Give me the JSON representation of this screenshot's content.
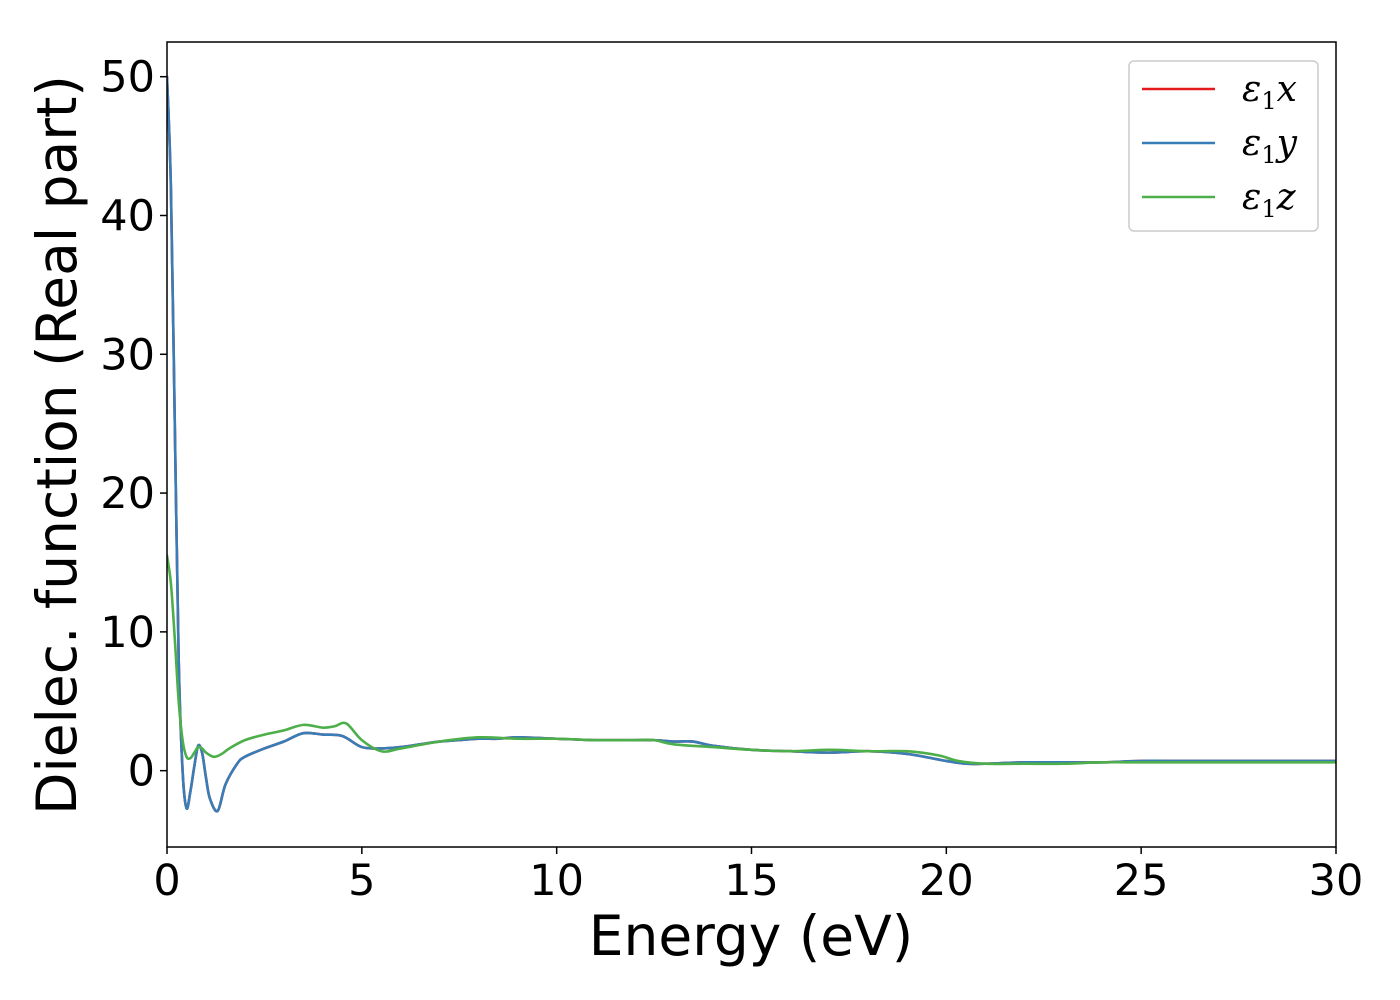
{
  "chart_data": {
    "type": "line",
    "title": "",
    "xlabel": "Energy (eV)",
    "ylabel": "Dielec. function (Real part)",
    "xlim": [
      0,
      30
    ],
    "ylim": [
      -5.5,
      52.5
    ],
    "xticks": [
      0,
      5,
      10,
      15,
      20,
      25,
      30
    ],
    "yticks": [
      0,
      10,
      20,
      30,
      40,
      50
    ],
    "grid": false,
    "legend_position": "top-right",
    "series": [
      {
        "name": "ε1x",
        "legend_main": "ε",
        "legend_sub": "1",
        "legend_axis": "x",
        "color": "#e41a1c",
        "x": [
          0,
          0.1,
          0.2,
          0.3,
          0.4,
          0.5,
          0.6,
          0.7,
          0.8,
          0.9,
          1.0,
          1.1,
          1.3,
          1.5,
          1.8,
          2.0,
          2.5,
          3.0,
          3.5,
          4.0,
          4.5,
          5.0,
          5.5,
          6.0,
          6.5,
          7.0,
          7.5,
          8.0,
          8.5,
          9.0,
          10.0,
          11.0,
          12.0,
          12.5,
          13.0,
          13.5,
          14.0,
          15.0,
          16.0,
          17.0,
          18.0,
          19.0,
          20.0,
          20.5,
          21.0,
          22.0,
          23.0,
          24.0,
          25.0,
          26.0,
          27.0,
          28.0,
          29.0,
          30.0
        ],
        "y": [
          50,
          42,
          25,
          8,
          0,
          -2.7,
          -1.5,
          0.3,
          1.8,
          1.3,
          -0.5,
          -2.0,
          -2.9,
          -1.0,
          0.5,
          1.0,
          1.6,
          2.1,
          2.7,
          2.6,
          2.5,
          1.7,
          1.6,
          1.7,
          1.9,
          2.1,
          2.2,
          2.3,
          2.3,
          2.4,
          2.3,
          2.2,
          2.2,
          2.2,
          2.1,
          2.1,
          1.8,
          1.5,
          1.4,
          1.3,
          1.4,
          1.2,
          0.7,
          0.5,
          0.5,
          0.6,
          0.6,
          0.6,
          0.7,
          0.7,
          0.7,
          0.7,
          0.7,
          0.7
        ]
      },
      {
        "name": "ε1y",
        "legend_main": "ε",
        "legend_sub": "1",
        "legend_axis": "y",
        "color": "#377eb8",
        "x": [
          0,
          0.1,
          0.2,
          0.3,
          0.4,
          0.5,
          0.6,
          0.7,
          0.8,
          0.9,
          1.0,
          1.1,
          1.3,
          1.5,
          1.8,
          2.0,
          2.5,
          3.0,
          3.5,
          4.0,
          4.5,
          5.0,
          5.5,
          6.0,
          6.5,
          7.0,
          7.5,
          8.0,
          8.5,
          9.0,
          10.0,
          11.0,
          12.0,
          12.5,
          13.0,
          13.5,
          14.0,
          15.0,
          16.0,
          17.0,
          18.0,
          19.0,
          20.0,
          20.5,
          21.0,
          22.0,
          23.0,
          24.0,
          25.0,
          26.0,
          27.0,
          28.0,
          29.0,
          30.0
        ],
        "y": [
          50,
          42,
          25,
          8,
          0,
          -2.7,
          -1.5,
          0.3,
          1.8,
          1.3,
          -0.5,
          -2.0,
          -2.9,
          -1.0,
          0.5,
          1.0,
          1.6,
          2.1,
          2.7,
          2.6,
          2.5,
          1.7,
          1.6,
          1.7,
          1.9,
          2.1,
          2.2,
          2.3,
          2.3,
          2.4,
          2.3,
          2.2,
          2.2,
          2.2,
          2.1,
          2.1,
          1.8,
          1.5,
          1.4,
          1.3,
          1.4,
          1.2,
          0.7,
          0.5,
          0.5,
          0.6,
          0.6,
          0.6,
          0.7,
          0.7,
          0.7,
          0.7,
          0.7,
          0.7
        ]
      },
      {
        "name": "ε1z",
        "legend_main": "ε",
        "legend_sub": "1",
        "legend_axis": "z",
        "color": "#4daf4a",
        "x": [
          0,
          0.1,
          0.2,
          0.3,
          0.4,
          0.5,
          0.6,
          0.7,
          0.8,
          0.9,
          1.0,
          1.2,
          1.4,
          1.6,
          2.0,
          2.5,
          3.0,
          3.5,
          4.0,
          4.3,
          4.6,
          5.0,
          5.5,
          6.0,
          7.0,
          8.0,
          9.0,
          10.0,
          11.0,
          12.0,
          12.5,
          13.0,
          14.0,
          15.0,
          16.0,
          17.0,
          18.0,
          19.0,
          19.8,
          20.3,
          21.0,
          22.0,
          23.0,
          24.0,
          25.0,
          26.0,
          27.0,
          28.0,
          29.0,
          30.0
        ],
        "y": [
          15.5,
          13.5,
          9.5,
          5.0,
          2.2,
          1.0,
          0.9,
          1.3,
          1.7,
          1.6,
          1.3,
          1.0,
          1.2,
          1.6,
          2.2,
          2.6,
          2.9,
          3.3,
          3.1,
          3.2,
          3.4,
          2.2,
          1.4,
          1.6,
          2.1,
          2.4,
          2.3,
          2.3,
          2.2,
          2.2,
          2.2,
          1.9,
          1.7,
          1.5,
          1.4,
          1.5,
          1.4,
          1.4,
          1.1,
          0.7,
          0.5,
          0.5,
          0.5,
          0.6,
          0.6,
          0.6,
          0.6,
          0.6,
          0.6,
          0.6
        ]
      }
    ]
  }
}
